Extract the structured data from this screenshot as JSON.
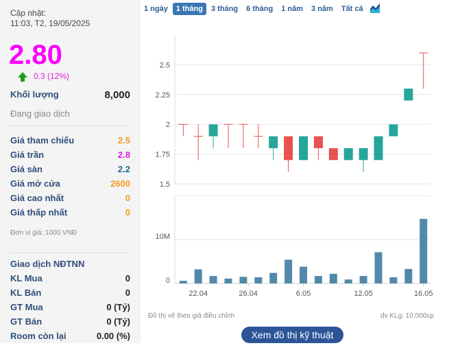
{
  "left": {
    "update_label": "Cập nhật:",
    "update_time": "11:03, T2, 19/05/2025",
    "price": "2.80",
    "change": "0.3 (12%)",
    "change_icon": "arrow-up-green",
    "volume_label": "Khối lượng",
    "volume_value": "8,000",
    "status": "Đang giao dịch",
    "prices": [
      {
        "label": "Giá tham chiếu",
        "value": "2.5",
        "color": "#f39c1f"
      },
      {
        "label": "Giá trần",
        "value": "2.8",
        "color": "#e01ee0"
      },
      {
        "label": "Giá sàn",
        "value": "2.2",
        "color": "#1b6a8f"
      },
      {
        "label": "Giá mở cửa",
        "value": "2600",
        "color": "#f39c1f"
      },
      {
        "label": "Giá cao nhất",
        "value": "0",
        "color": "#f39c1f"
      },
      {
        "label": "Giá thấp nhất",
        "value": "0",
        "color": "#f39c1f"
      }
    ],
    "unit_note": "Đơn vị giá: 1000 VNĐ",
    "foreign_title": "Giao dịch NĐTNN",
    "foreign": [
      {
        "label": "KL Mua",
        "value": "0"
      },
      {
        "label": "KL Bán",
        "value": "0"
      },
      {
        "label": "GT Mua",
        "value": "0 (Tỷ)"
      },
      {
        "label": "GT Bán",
        "value": "0 (Tỷ)"
      },
      {
        "label": "Room còn lại",
        "value": "0.00 (%)"
      }
    ]
  },
  "tabs": [
    {
      "label": "1 ngày"
    },
    {
      "label": "1 tháng",
      "active": true
    },
    {
      "label": "3 tháng"
    },
    {
      "label": "6 tháng"
    },
    {
      "label": "1 năm"
    },
    {
      "label": "3 năm"
    },
    {
      "label": "Tất cả"
    }
  ],
  "chart_icon": "area-chart-icon",
  "chart_data": [
    {
      "type": "candlestick",
      "ylim": [
        1.5,
        2.75
      ],
      "yticks": [
        "1.5",
        "1.75",
        "2",
        "2.25",
        "2.5"
      ],
      "colors": {
        "up": "#e8524f",
        "down": "#26a69a"
      },
      "candles": [
        {
          "o": 2.0,
          "h": 2.0,
          "l": 1.9,
          "c": 2.0
        },
        {
          "o": 1.9,
          "h": 2.0,
          "l": 1.7,
          "c": 1.9
        },
        {
          "o": 2.0,
          "h": 2.0,
          "l": 1.8,
          "c": 1.9
        },
        {
          "o": 2.0,
          "h": 2.0,
          "l": 1.8,
          "c": 2.0
        },
        {
          "o": 2.0,
          "h": 2.0,
          "l": 1.8,
          "c": 2.0
        },
        {
          "o": 1.9,
          "h": 2.0,
          "l": 1.8,
          "c": 1.9
        },
        {
          "o": 1.9,
          "h": 1.9,
          "l": 1.7,
          "c": 1.8
        },
        {
          "o": 1.7,
          "h": 1.9,
          "l": 1.6,
          "c": 1.9
        },
        {
          "o": 1.9,
          "h": 1.9,
          "l": 1.7,
          "c": 1.7
        },
        {
          "o": 1.8,
          "h": 1.9,
          "l": 1.7,
          "c": 1.9
        },
        {
          "o": 1.7,
          "h": 1.8,
          "l": 1.7,
          "c": 1.8
        },
        {
          "o": 1.8,
          "h": 1.8,
          "l": 1.7,
          "c": 1.7
        },
        {
          "o": 1.8,
          "h": 1.8,
          "l": 1.6,
          "c": 1.7
        },
        {
          "o": 1.9,
          "h": 1.9,
          "l": 1.7,
          "c": 1.7
        },
        {
          "o": 2.0,
          "h": 2.0,
          "l": 1.9,
          "c": 1.9
        },
        {
          "o": 2.3,
          "h": 2.3,
          "l": 2.2,
          "c": 2.2
        },
        {
          "o": 2.6,
          "h": 2.6,
          "l": 2.3,
          "c": 2.6
        }
      ]
    },
    {
      "type": "bar",
      "ylim": [
        0,
        20
      ],
      "yticks": [
        {
          "v": 0,
          "label": "0"
        },
        {
          "v": 10,
          "label": "10M"
        }
      ],
      "color": "#5289aa",
      "values_millions": [
        0.6,
        3.2,
        1.7,
        1.1,
        1.5,
        1.4,
        2.4,
        5.4,
        3.8,
        1.7,
        2.2,
        0.9,
        1.7,
        7.1,
        1.4,
        3.3,
        14.7
      ],
      "xticks": [
        {
          "label": "22.04",
          "index": 1
        },
        {
          "label": "26.04",
          "index": 4.33
        },
        {
          "label": "6.05",
          "index": 8
        },
        {
          "label": "12.05",
          "index": 12
        },
        {
          "label": "16.05",
          "index": 16
        }
      ]
    }
  ],
  "footer": {
    "note": "Đồ thị vẽ theo giá điều chỉnh",
    "unit": "dv KLg: 10,000cp",
    "tech_button": "Xem đồ thị kỹ thuật"
  }
}
